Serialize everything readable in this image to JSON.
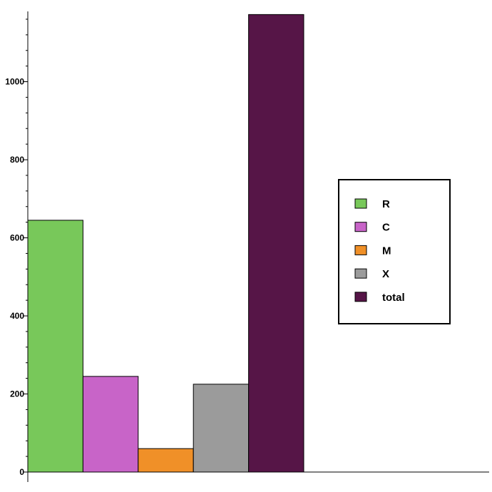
{
  "chart_data": {
    "type": "bar",
    "categories": [
      "R",
      "C",
      "M",
      "X",
      "total"
    ],
    "values": [
      645,
      245,
      60,
      225,
      1172
    ],
    "colors": [
      "#78c85a",
      "#c864c8",
      "#f09028",
      "#9b9b9b",
      "#561547"
    ],
    "ylim": [
      0,
      1180
    ],
    "y_ticks_labeled": [
      0,
      200,
      400,
      600,
      800,
      1000
    ],
    "y_tick_labels": [
      "0",
      "200",
      "400",
      "600",
      "800",
      "1000"
    ],
    "y_minor_step": 40,
    "grid": false,
    "legend": {
      "placement": "right",
      "entries": [
        "R",
        "C",
        "M",
        "X",
        "total"
      ]
    }
  }
}
